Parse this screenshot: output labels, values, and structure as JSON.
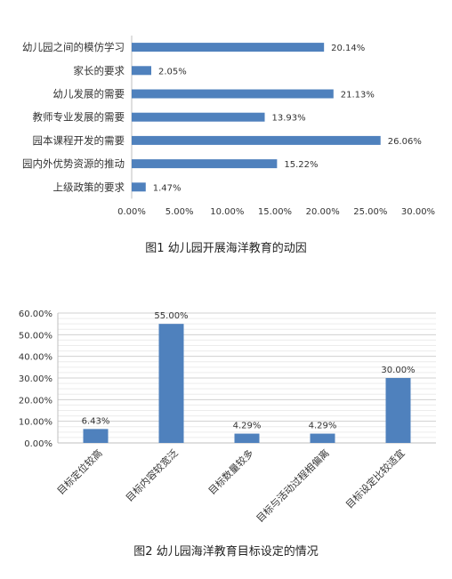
{
  "chart_data": [
    {
      "type": "bar",
      "orientation": "horizontal",
      "categories": [
        "幼儿园之间的模仿学习",
        "家长的要求",
        "幼儿发展的需要",
        "教师专业发展的需要",
        "园本课程开发的需要",
        "园内外优势资源的推动",
        "上级政策的要求"
      ],
      "values": [
        20.14,
        2.05,
        21.13,
        13.93,
        26.06,
        15.22,
        1.47
      ],
      "value_labels": [
        "20.14%",
        "2.05%",
        "21.13%",
        "13.93%",
        "26.06%",
        "15.22%",
        "1.47%"
      ],
      "xlim": [
        0,
        30
      ],
      "ticks": [
        "0.00%",
        "5.00%",
        "10.00%",
        "15.00%",
        "20.00%",
        "25.00%",
        "30.00%"
      ],
      "grid": false,
      "color": "#4f81bd",
      "caption": "图1 幼儿园开展海洋教育的动因"
    },
    {
      "type": "bar",
      "orientation": "vertical",
      "categories": [
        "目标定位较高",
        "目标内容较宽泛",
        "目标数量较多",
        "目标与活动过程相偏离",
        "目标设定比较适宜"
      ],
      "values": [
        6.43,
        55.0,
        4.29,
        4.29,
        30.0
      ],
      "value_labels": [
        "6.43%",
        "55.00%",
        "4.29%",
        "4.29%",
        "30.00%"
      ],
      "ylim": [
        0,
        60
      ],
      "ticks": [
        "0.00%",
        "10.00%",
        "20.00%",
        "30.00%",
        "40.00%",
        "50.00%",
        "60.00%"
      ],
      "grid": true,
      "color": "#4f81bd",
      "caption": "图2 幼儿园海洋教育目标设定的情况"
    }
  ]
}
